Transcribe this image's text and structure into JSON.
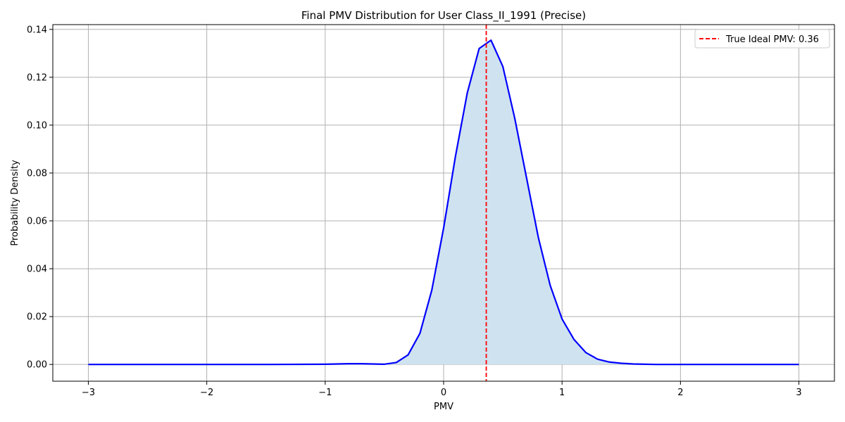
{
  "chart_data": {
    "type": "area",
    "title": "Final PMV Distribution for User Class_II_1991 (Precise)",
    "xlabel": "PMV",
    "ylabel": "Probability Density",
    "xlim": [
      -3.3,
      3.3
    ],
    "ylim": [
      -0.007,
      0.142
    ],
    "grid": true,
    "legend_position": "top-right",
    "x_ticks": [
      -3,
      -2,
      -1,
      0,
      1,
      2,
      3
    ],
    "x_tick_labels": [
      "−3",
      "−2",
      "−1",
      "0",
      "1",
      "2",
      "3"
    ],
    "y_ticks": [
      0.0,
      0.02,
      0.04,
      0.06,
      0.08,
      0.1,
      0.12,
      0.14
    ],
    "y_tick_labels": [
      "0.00",
      "0.02",
      "0.04",
      "0.06",
      "0.08",
      "0.10",
      "0.12",
      "0.14"
    ],
    "series": [
      {
        "color": "#0000ff",
        "fill_color": "#cfe2ef",
        "x": [
          -3.0,
          -2.5,
          -2.0,
          -1.5,
          -1.0,
          -0.9,
          -0.8,
          -0.7,
          -0.6,
          -0.5,
          -0.4,
          -0.3,
          -0.2,
          -0.1,
          0.0,
          0.1,
          0.2,
          0.3,
          0.4,
          0.5,
          0.6,
          0.7,
          0.8,
          0.9,
          1.0,
          1.1,
          1.2,
          1.3,
          1.4,
          1.5,
          1.6,
          1.7,
          1.8,
          2.0,
          2.5,
          3.0
        ],
        "y": [
          0.0,
          0.0,
          0.0,
          0.0,
          0.0001,
          0.0002,
          0.0003,
          0.0003,
          0.0002,
          0.0001,
          0.0008,
          0.004,
          0.013,
          0.031,
          0.057,
          0.087,
          0.1135,
          0.132,
          0.1355,
          0.1245,
          0.103,
          0.078,
          0.053,
          0.033,
          0.019,
          0.0105,
          0.005,
          0.0022,
          0.001,
          0.0005,
          0.0002,
          0.0001,
          0.0,
          0.0,
          0.0,
          0.0
        ]
      }
    ],
    "reference_line": {
      "x": 0.36,
      "color": "#ff0000",
      "style": "dashed",
      "label": "True Ideal PMV: 0.36"
    }
  }
}
